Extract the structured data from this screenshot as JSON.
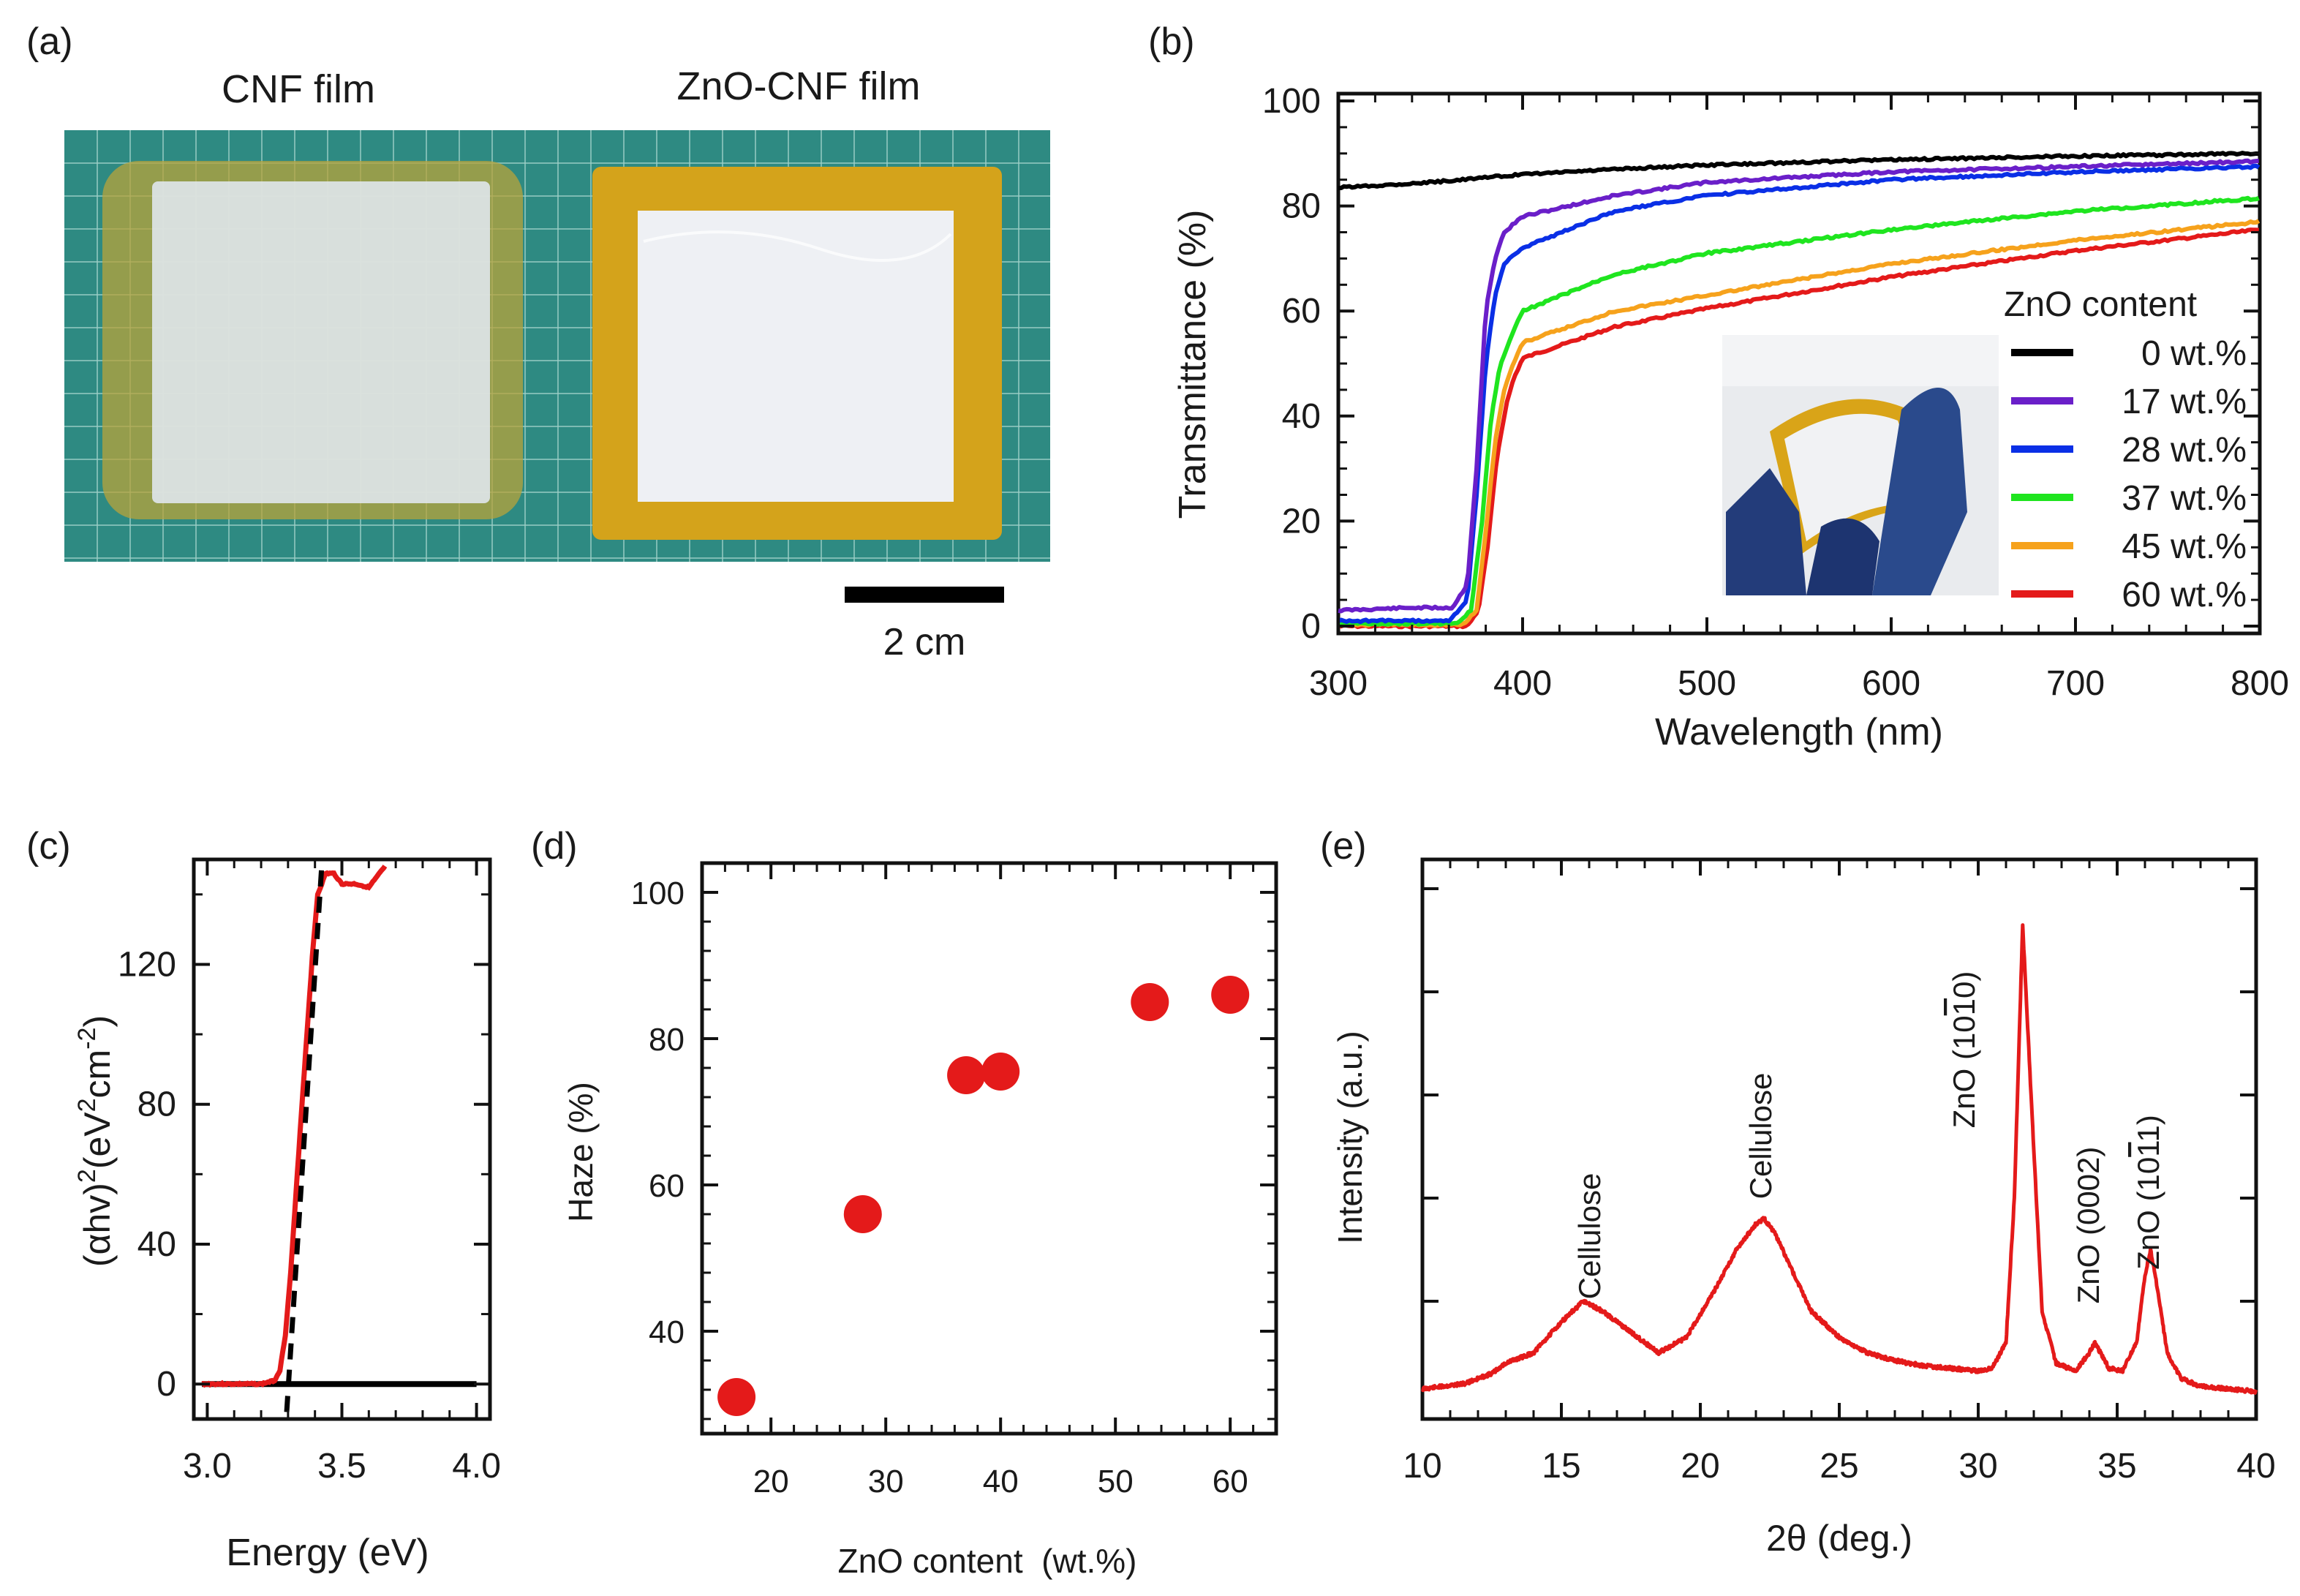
{
  "panel_labels": [
    "(a)",
    "(b)",
    "(c)",
    "(d)",
    "(e)"
  ],
  "photo": {
    "left_label": "CNF film",
    "right_label": "ZnO-CNF film",
    "scale_bar_label": "2 cm"
  },
  "colors": {
    "zno0": "#000000",
    "zno17": "#6a1fc9",
    "zno28": "#0a2fe6",
    "zno37": "#1fe51f",
    "zno45": "#f6a21c",
    "zno60": "#e41a1a",
    "red": "#e41a1a",
    "mat": "#2e8a82",
    "tape": "#c9a317"
  },
  "chart_data": [
    {
      "id": "b",
      "type": "line",
      "xlabel": "Wavelength (nm)",
      "ylabel": "Transmittance (%)",
      "xlim": [
        300,
        800
      ],
      "ylim": [
        0,
        100
      ],
      "xticks": [
        300,
        400,
        500,
        600,
        700,
        800
      ],
      "yticks": [
        0,
        20,
        40,
        60,
        80,
        100
      ],
      "legend_title": "ZnO content",
      "legend_position": "center-right",
      "series": [
        {
          "name": "0 wt.%",
          "color_key": "zno0",
          "x": [
            300,
            350,
            400,
            450,
            500,
            600,
            700,
            800
          ],
          "values": [
            83.5,
            84.5,
            86,
            87,
            87.8,
            88.8,
            89.5,
            90
          ]
        },
        {
          "name": "17 wt.%",
          "color_key": "zno17",
          "x": [
            300,
            340,
            362,
            370,
            375,
            380,
            385,
            390,
            400,
            450,
            500,
            600,
            700,
            800
          ],
          "values": [
            3,
            3.5,
            3.5,
            8,
            30,
            60,
            70,
            75,
            78,
            82,
            84.5,
            86.5,
            87.5,
            88.5
          ]
        },
        {
          "name": "28 wt.%",
          "color_key": "zno28",
          "x": [
            300,
            360,
            370,
            375,
            380,
            385,
            390,
            400,
            450,
            500,
            600,
            700,
            800
          ],
          "values": [
            1,
            1,
            5,
            25,
            50,
            63,
            69,
            72,
            79,
            82,
            85,
            86.5,
            87.5
          ]
        },
        {
          "name": "37 wt.%",
          "color_key": "zno37",
          "x": [
            300,
            365,
            372,
            378,
            383,
            388,
            395,
            400,
            450,
            500,
            600,
            700,
            800
          ],
          "values": [
            0.5,
            0.5,
            3,
            20,
            40,
            50,
            56,
            60,
            67,
            71,
            75.5,
            79,
            81.5
          ]
        },
        {
          "name": "45 wt.%",
          "color_key": "zno45",
          "x": [
            300,
            368,
            375,
            380,
            385,
            390,
            395,
            400,
            450,
            500,
            600,
            700,
            800
          ],
          "values": [
            0.3,
            0.3,
            3,
            18,
            35,
            45,
            50,
            54,
            60,
            63,
            69,
            73.5,
            77
          ]
        },
        {
          "name": "60 wt.%",
          "color_key": "zno60",
          "x": [
            300,
            370,
            376,
            381,
            386,
            391,
            395,
            400,
            450,
            500,
            600,
            700,
            800
          ],
          "values": [
            0,
            0,
            3,
            15,
            32,
            42,
            47,
            51,
            57,
            60.5,
            66.5,
            71.5,
            75.5
          ]
        }
      ]
    },
    {
      "id": "c",
      "type": "line",
      "xlabel": "Energy (eV)",
      "ylabel_main": "(αhv)",
      "ylabel_sup1": "2",
      "ylabel_unit": "(eV",
      "ylabel_sup2": "2",
      "ylabel_unit2": "cm",
      "ylabel_sup3": "-2",
      "ylabel_end": ")",
      "xlim": [
        2.95,
        4.05
      ],
      "ylim": [
        -10,
        150
      ],
      "xticks": [
        3.0,
        3.5,
        4.0
      ],
      "xtick_labels": [
        "3.0",
        "3.5",
        "4.0"
      ],
      "yticks": [
        0,
        40,
        80,
        120
      ],
      "series": [
        {
          "name": "data",
          "color_key": "red",
          "x": [
            2.98,
            3.2,
            3.25,
            3.27,
            3.29,
            3.31,
            3.33,
            3.35,
            3.37,
            3.39,
            3.41,
            3.44,
            3.47,
            3.5,
            3.55,
            3.6,
            3.63,
            3.66
          ],
          "values": [
            0,
            0,
            1,
            4,
            14,
            32,
            55,
            78,
            100,
            122,
            140,
            146,
            146,
            143,
            143,
            142,
            145,
            148
          ]
        },
        {
          "name": "fit",
          "color_key": "zno0",
          "style": "dashed",
          "x": [
            3.295,
            3.425
          ],
          "values": [
            -8,
            148
          ]
        },
        {
          "name": "baseline",
          "color_key": "zno0",
          "x": [
            2.98,
            4.0
          ],
          "values": [
            0,
            0
          ]
        }
      ]
    },
    {
      "id": "d",
      "type": "scatter",
      "xlabel": "ZnO content  (wt.%)",
      "ylabel": "Haze (%)",
      "xlim": [
        14,
        64
      ],
      "ylim": [
        26,
        104
      ],
      "xticks": [
        20,
        30,
        40,
        50,
        60
      ],
      "yticks": [
        40,
        60,
        80,
        100
      ],
      "x": [
        17,
        28,
        37,
        40,
        53,
        60
      ],
      "values": [
        31,
        56,
        75,
        75.5,
        85,
        86
      ]
    },
    {
      "id": "e",
      "type": "line",
      "xlabel": "2θ (deg.)",
      "ylabel": "Intensity (a.u.)",
      "xlim": [
        10,
        40
      ],
      "ylim": [
        0,
        100
      ],
      "xticks": [
        10,
        15,
        20,
        25,
        30,
        35,
        40
      ],
      "annotations": [
        "Cellulose",
        "Cellulose",
        "ZnO (10",
        "0)",
        "ZnO (0002)",
        "ZnO (10",
        "1)"
      ],
      "annotation_bar_digit": "1",
      "series": [
        {
          "name": "XRD",
          "color_key": "red",
          "x": [
            10,
            11.5,
            12.5,
            13,
            14,
            15,
            15.8,
            16.5,
            17.5,
            18.5,
            19.5,
            20.5,
            21.3,
            22,
            22.3,
            22.7,
            23.3,
            24,
            25,
            26,
            27,
            28,
            29,
            30,
            30.5,
            31,
            31.3,
            31.6,
            31.9,
            32.3,
            32.8,
            33.5,
            34,
            34.2,
            34.4,
            34.7,
            35.2,
            35.7,
            36,
            36.2,
            36.4,
            36.8,
            37.3,
            38,
            39,
            40
          ],
          "values": [
            3,
            4,
            6,
            8,
            10,
            16,
            20,
            18,
            14,
            10,
            13,
            22,
            30,
            35,
            36,
            33,
            26,
            18,
            13,
            10,
            8.5,
            7.5,
            7,
            6.5,
            7,
            12,
            40,
            93,
            60,
            18,
            8,
            6.5,
            10,
            12,
            10,
            7,
            6.5,
            12,
            25,
            30,
            24,
            10,
            5,
            3.5,
            3,
            2.5
          ]
        }
      ]
    }
  ]
}
